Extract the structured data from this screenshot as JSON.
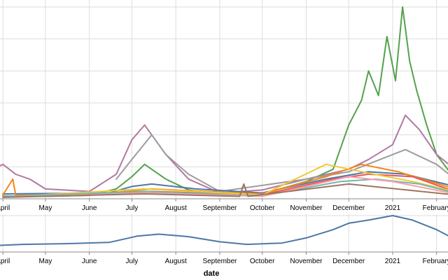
{
  "chart_data": [
    {
      "type": "line",
      "panel": "detail",
      "x_axis": {
        "ticks": [
          "April",
          "May",
          "June",
          "July",
          "August",
          "September",
          "October",
          "November",
          "December",
          "2021",
          "February"
        ],
        "tick_dates": [
          "2020-04-01",
          "2020-05-01",
          "2020-06-01",
          "2020-07-01",
          "2020-08-01",
          "2020-09-01",
          "2020-10-01",
          "2020-11-01",
          "2020-12-01",
          "2021-01-01",
          "2021-02-01"
        ],
        "range": [
          "2020-03-25",
          "2021-02-14"
        ]
      },
      "grid": true,
      "legend": "none",
      "series": [
        {
          "color": "#54a24b",
          "points": [
            [
              "2020-04-01",
              6
            ],
            [
              "2020-05-01",
              5
            ],
            [
              "2020-06-01",
              7
            ],
            [
              "2020-06-20",
              20
            ],
            [
              "2020-07-01",
              45
            ],
            [
              "2020-07-10",
              70
            ],
            [
              "2020-07-25",
              40
            ],
            [
              "2020-08-10",
              18
            ],
            [
              "2020-09-01",
              8
            ],
            [
              "2020-10-01",
              10
            ],
            [
              "2020-11-01",
              35
            ],
            [
              "2020-11-20",
              60
            ],
            [
              "2020-12-01",
              150
            ],
            [
              "2020-12-10",
              200
            ],
            [
              "2020-12-15",
              260
            ],
            [
              "2020-12-22",
              210
            ],
            [
              "2020-12-28",
              330
            ],
            [
              "2021-01-03",
              240
            ],
            [
              "2021-01-08",
              390
            ],
            [
              "2021-01-13",
              280
            ],
            [
              "2021-01-18",
              220
            ],
            [
              "2021-01-25",
              150
            ],
            [
              "2021-02-01",
              90
            ],
            [
              "2021-02-14",
              40
            ]
          ]
        },
        {
          "color": "#b279a2",
          "points": [
            [
              "2020-03-25",
              60
            ],
            [
              "2020-04-01",
              70
            ],
            [
              "2020-04-10",
              50
            ],
            [
              "2020-04-20",
              40
            ],
            [
              "2020-05-01",
              20
            ],
            [
              "2020-06-01",
              15
            ],
            [
              "2020-06-20",
              50
            ],
            [
              "2020-07-01",
              120
            ],
            [
              "2020-07-10",
              150
            ],
            [
              "2020-07-25",
              90
            ],
            [
              "2020-08-10",
              40
            ],
            [
              "2020-09-01",
              12
            ],
            [
              "2020-10-01",
              18
            ],
            [
              "2020-11-01",
              40
            ],
            [
              "2020-12-01",
              60
            ],
            [
              "2020-12-15",
              80
            ],
            [
              "2021-01-01",
              110
            ],
            [
              "2021-01-10",
              170
            ],
            [
              "2021-01-20",
              140
            ],
            [
              "2021-02-01",
              90
            ],
            [
              "2021-02-14",
              60
            ]
          ]
        },
        {
          "color": "#9d9d9d",
          "points": [
            [
              "2020-06-20",
              40
            ],
            [
              "2020-07-01",
              80
            ],
            [
              "2020-07-15",
              130
            ],
            [
              "2020-07-25",
              90
            ],
            [
              "2020-08-10",
              50
            ],
            [
              "2020-09-01",
              15
            ],
            [
              "2020-11-01",
              40
            ],
            [
              "2020-12-01",
              55
            ],
            [
              "2021-01-10",
              100
            ],
            [
              "2021-02-01",
              70
            ],
            [
              "2021-02-14",
              40
            ]
          ]
        },
        {
          "color": "#4c78a8",
          "points": [
            [
              "2020-04-01",
              10
            ],
            [
              "2020-06-15",
              12
            ],
            [
              "2020-07-01",
              25
            ],
            [
              "2020-07-15",
              30
            ],
            [
              "2020-08-15",
              20
            ],
            [
              "2020-10-01",
              12
            ],
            [
              "2020-11-15",
              40
            ],
            [
              "2020-12-15",
              55
            ],
            [
              "2021-01-10",
              50
            ],
            [
              "2021-02-14",
              25
            ]
          ]
        },
        {
          "color": "#f58518",
          "points": [
            [
              "2020-04-01",
              8
            ],
            [
              "2020-04-08",
              40
            ],
            [
              "2020-04-10",
              8
            ],
            [
              "2020-06-01",
              8
            ],
            [
              "2020-07-15",
              20
            ],
            [
              "2020-10-01",
              10
            ],
            [
              "2020-11-15",
              45
            ],
            [
              "2020-12-10",
              70
            ],
            [
              "2021-01-05",
              55
            ],
            [
              "2021-02-14",
              20
            ]
          ]
        },
        {
          "color": "#e45756",
          "points": [
            [
              "2020-04-01",
              5
            ],
            [
              "2020-07-15",
              15
            ],
            [
              "2020-10-01",
              8
            ],
            [
              "2020-11-20",
              40
            ],
            [
              "2020-12-15",
              50
            ],
            [
              "2021-01-15",
              45
            ],
            [
              "2021-02-14",
              15
            ]
          ]
        },
        {
          "color": "#eeca3b",
          "points": [
            [
              "2020-04-01",
              4
            ],
            [
              "2020-07-10",
              20
            ],
            [
              "2020-10-01",
              8
            ],
            [
              "2020-11-15",
              70
            ],
            [
              "2020-12-10",
              55
            ],
            [
              "2021-01-15",
              35
            ],
            [
              "2021-02-14",
              15
            ]
          ]
        },
        {
          "color": "#72b7b2",
          "points": [
            [
              "2020-04-01",
              5
            ],
            [
              "2020-07-10",
              15
            ],
            [
              "2020-10-01",
              6
            ],
            [
              "2020-11-25",
              35
            ],
            [
              "2020-12-20",
              40
            ],
            [
              "2021-01-20",
              30
            ],
            [
              "2021-02-14",
              12
            ]
          ]
        },
        {
          "color": "#ff9da6",
          "points": [
            [
              "2020-04-01",
              3
            ],
            [
              "2020-07-10",
              12
            ],
            [
              "2020-10-01",
              5
            ],
            [
              "2020-12-01",
              45
            ],
            [
              "2021-01-01",
              35
            ],
            [
              "2021-02-14",
              10
            ]
          ]
        },
        {
          "color": "#9d755d",
          "points": [
            [
              "2020-04-01",
              3
            ],
            [
              "2020-07-10",
              10
            ],
            [
              "2020-09-15",
              5
            ],
            [
              "2020-09-18",
              30
            ],
            [
              "2020-09-21",
              5
            ],
            [
              "2020-12-01",
              30
            ],
            [
              "2021-02-14",
              8
            ]
          ]
        }
      ]
    },
    {
      "type": "line",
      "panel": "overview",
      "x_axis": {
        "ticks": [
          "April",
          "May",
          "June",
          "July",
          "August",
          "September",
          "October",
          "November",
          "December",
          "2021",
          "February"
        ],
        "tick_dates": [
          "2020-04-01",
          "2020-05-01",
          "2020-06-01",
          "2020-07-01",
          "2020-08-01",
          "2020-09-01",
          "2020-10-01",
          "2020-11-01",
          "2020-12-01",
          "2021-01-01",
          "2021-02-01"
        ],
        "range": [
          "2020-03-25",
          "2021-02-14"
        ]
      },
      "xlabel": "date",
      "grid": true,
      "series": [
        {
          "color": "#4c78a8",
          "points": [
            [
              "2020-03-25",
              10
            ],
            [
              "2020-04-15",
              12
            ],
            [
              "2020-05-15",
              13
            ],
            [
              "2020-06-15",
              15
            ],
            [
              "2020-07-05",
              25
            ],
            [
              "2020-07-20",
              28
            ],
            [
              "2020-08-10",
              24
            ],
            [
              "2020-09-01",
              16
            ],
            [
              "2020-09-20",
              12
            ],
            [
              "2020-10-15",
              14
            ],
            [
              "2020-11-01",
              22
            ],
            [
              "2020-11-20",
              35
            ],
            [
              "2020-12-01",
              45
            ],
            [
              "2020-12-15",
              50
            ],
            [
              "2021-01-01",
              57
            ],
            [
              "2021-01-15",
              50
            ],
            [
              "2021-02-01",
              35
            ],
            [
              "2021-02-14",
              20
            ]
          ]
        }
      ]
    }
  ]
}
